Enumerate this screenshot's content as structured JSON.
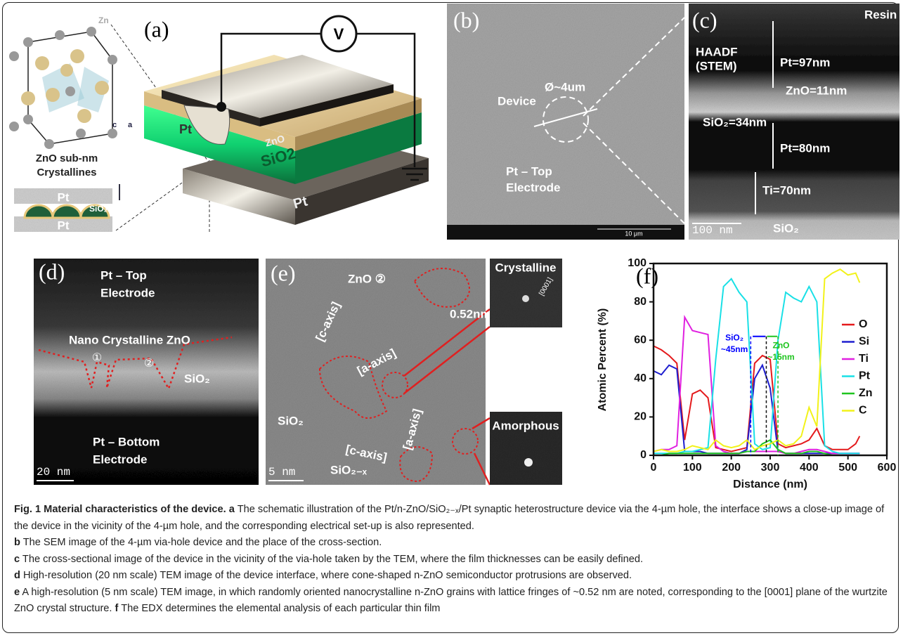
{
  "panels": {
    "a": {
      "label": "(a)",
      "texts": [
        "Zn",
        "c",
        "a",
        "ZnO sub-nm",
        "Crystallines",
        "Pt",
        "SiO₂",
        "Pt",
        "V",
        "Pt",
        "ZnO",
        "SiO2",
        "Pt"
      ]
    },
    "b": {
      "label": "(b)",
      "texts": [
        "Ø~4um",
        "Device",
        "Pt – Top",
        "Electrode",
        "10 μm"
      ]
    },
    "c": {
      "label": "(c)",
      "texts": [
        "Resin",
        "HAADF",
        "(STEM)",
        "Pt=97nm",
        "ZnO=11nm",
        "SiO₂=34nm",
        "Pt=80nm",
        "Ti=70nm",
        "100 nm",
        "SiO₂"
      ]
    },
    "d": {
      "label": "(d)",
      "texts": [
        "Pt – Top",
        "Electrode",
        "Nano Crystalline ZnO",
        "①",
        "②",
        "SiO₂",
        "Pt – Bottom",
        "Electrode",
        "20 nm"
      ]
    },
    "e": {
      "label": "(e)",
      "texts": [
        "ZnO ②",
        "0.52nm",
        "[c-axis]",
        "[a-axis]",
        "SiO₂",
        "[c-axis]",
        "[a-axis]",
        "SiO₂₋ₓ",
        "5 nm",
        "Crystalline",
        "[0001]",
        "Amorphous"
      ]
    }
  },
  "chart_data": {
    "type": "line",
    "label": "(f)",
    "xlabel": "Distance (nm)",
    "ylabel": "Atomic Percent (%)",
    "xlim": [
      0,
      600
    ],
    "xticks": [
      0,
      100,
      200,
      300,
      400,
      500,
      600
    ],
    "ylim": [
      0,
      100
    ],
    "yticks": [
      0,
      20,
      40,
      60,
      80,
      100
    ],
    "x": [
      0,
      20,
      40,
      60,
      80,
      100,
      120,
      140,
      160,
      180,
      200,
      220,
      240,
      260,
      280,
      300,
      320,
      340,
      360,
      380,
      400,
      420,
      440,
      460,
      480,
      500,
      520,
      530
    ],
    "series": [
      {
        "name": "O",
        "color": "#e41a1c",
        "values": [
          57,
          55,
          52,
          48,
          8,
          32,
          34,
          30,
          4,
          3,
          2,
          3,
          4,
          48,
          52,
          50,
          6,
          4,
          5,
          6,
          8,
          14,
          5,
          3,
          3,
          3,
          6,
          10
        ]
      },
      {
        "name": "Si",
        "color": "#1f1fcf",
        "values": [
          44,
          42,
          47,
          45,
          2,
          2,
          2,
          1,
          1,
          1,
          1,
          1,
          3,
          40,
          47,
          35,
          2,
          1,
          1,
          1,
          1,
          1,
          1,
          1,
          1,
          1,
          1,
          1
        ]
      },
      {
        "name": "Ti",
        "color": "#e020e0",
        "values": [
          2,
          3,
          3,
          5,
          72,
          65,
          64,
          63,
          5,
          2,
          1,
          1,
          2,
          2,
          2,
          2,
          2,
          1,
          1,
          2,
          3,
          3,
          2,
          1,
          1,
          1,
          1,
          1
        ]
      },
      {
        "name": "Pt",
        "color": "#19e0e6",
        "values": [
          1,
          1,
          1,
          1,
          2,
          2,
          3,
          4,
          50,
          88,
          92,
          85,
          80,
          6,
          3,
          4,
          60,
          85,
          82,
          80,
          88,
          80,
          5,
          2,
          1,
          1,
          1,
          1
        ]
      },
      {
        "name": "Zn",
        "color": "#1fc41f",
        "values": [
          0,
          0,
          1,
          1,
          1,
          1,
          1,
          1,
          1,
          1,
          1,
          1,
          2,
          2,
          6,
          8,
          3,
          1,
          1,
          1,
          2,
          2,
          1,
          0,
          0,
          0,
          0,
          0
        ]
      },
      {
        "name": "C",
        "color": "#f2f21a",
        "values": [
          2,
          3,
          2,
          2,
          3,
          5,
          4,
          3,
          8,
          5,
          4,
          5,
          8,
          3,
          5,
          6,
          8,
          5,
          6,
          10,
          25,
          15,
          92,
          95,
          97,
          94,
          95,
          90
        ]
      }
    ],
    "annotations": [
      "SiO₂",
      "~45nm",
      "ZnO",
      "~15nm"
    ]
  },
  "caption": {
    "title": "Fig. 1 Material characteristics of the device.",
    "items": [
      {
        "letter": "a",
        "text": "The schematic illustration of the Pt/n-ZnO/SiO₂₋ₓ/Pt synaptic heterostructure device via the 4-µm hole, the interface shows a close-up image of the device in the vicinity of the 4-µm hole, and the corresponding electrical set-up is also represented."
      },
      {
        "letter": "b",
        "text": "The SEM image of the 4-µm via-hole device and the place of the cross-section."
      },
      {
        "letter": "c",
        "text": "The cross-sectional image of the device in the vicinity of the via-hole taken by the TEM, where the film thicknesses can be easily defined."
      },
      {
        "letter": "d",
        "text": "High-resolution (20 nm scale) TEM image of the device interface, where cone-shaped n-ZnO semiconductor protrusions are observed."
      },
      {
        "letter": "e",
        "text": "A high-resolution (5 nm scale) TEM image, in which randomly oriented nanocrystalline n-ZnO grains with lattice fringes of ~0.52 nm are noted, corresponding to the [0001] plane of the wurtzite ZnO crystal structure."
      },
      {
        "letter": "f",
        "text": "The EDX determines the elemental analysis of each particular thin film"
      }
    ]
  }
}
